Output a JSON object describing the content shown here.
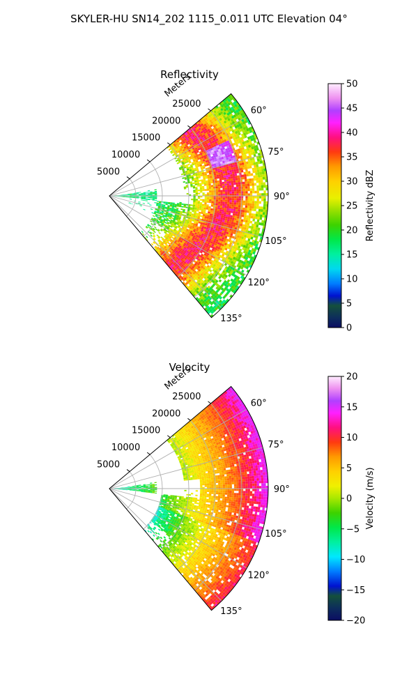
{
  "figure": {
    "suptitle": "SKYLER-HU  SN14_202  1115_0.011 UTC Elevation 04°"
  },
  "chart_data": [
    {
      "type": "heatmap",
      "projection": "polar-sector",
      "title": "Reflectivity",
      "radial_axis_label": "Meters",
      "radial_ticks": [
        5000,
        10000,
        15000,
        20000,
        25000
      ],
      "radial_tick_labels": [
        "5000",
        "10000",
        "15000",
        "20000",
        "25000"
      ],
      "rlim": [
        0,
        30000
      ],
      "theta_range_deg": [
        50,
        140
      ],
      "theta_ticks_deg": [
        60,
        75,
        90,
        105,
        120,
        135
      ],
      "theta_tick_labels": [
        "60°",
        "75°",
        "90°",
        "105°",
        "120°",
        "135°"
      ],
      "grid": true,
      "colorbar": {
        "label": "Reflectivity dBZ",
        "range": [
          0,
          50
        ],
        "ticks": [
          0,
          5,
          10,
          15,
          20,
          25,
          30,
          35,
          40,
          45,
          50
        ],
        "tick_labels": [
          "0",
          "5",
          "10",
          "15",
          "20",
          "25",
          "30",
          "35",
          "40",
          "45",
          "50"
        ]
      },
      "field_description_colors": [
        "#0a1a5c",
        "#00c8c8",
        "#40d000",
        "#fff000",
        "#ff2020",
        "#c020ff",
        "#ffe6ff"
      ]
    },
    {
      "type": "heatmap",
      "projection": "polar-sector",
      "title": "Velocity",
      "radial_axis_label": "Meters",
      "radial_ticks": [
        5000,
        10000,
        15000,
        20000,
        25000
      ],
      "radial_tick_labels": [
        "5000",
        "10000",
        "15000",
        "20000",
        "25000"
      ],
      "rlim": [
        0,
        30000
      ],
      "theta_range_deg": [
        50,
        140
      ],
      "theta_ticks_deg": [
        60,
        75,
        90,
        105,
        120,
        135
      ],
      "theta_tick_labels": [
        "60°",
        "75°",
        "90°",
        "105°",
        "120°",
        "135°"
      ],
      "grid": true,
      "colorbar": {
        "label": "Velocity (m/s)",
        "range": [
          -20,
          20
        ],
        "ticks": [
          -20,
          -15,
          -10,
          -5,
          0,
          5,
          10,
          15,
          20
        ],
        "tick_labels": [
          "−20",
          "−15",
          "−10",
          "−5",
          "0",
          "5",
          "10",
          "15",
          "20"
        ]
      }
    }
  ]
}
